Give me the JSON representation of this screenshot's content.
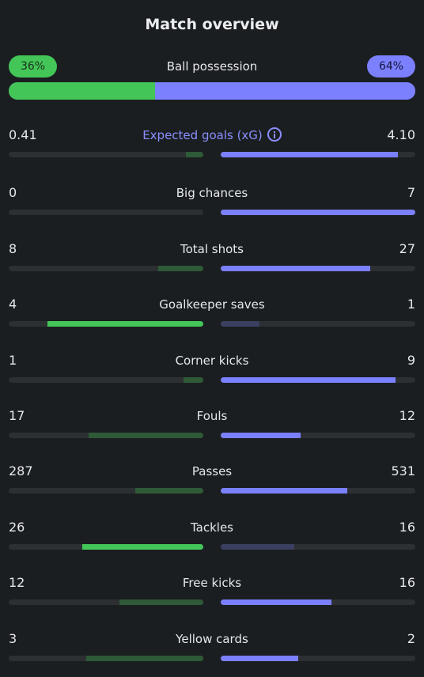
{
  "title": "Match overview",
  "possession": {
    "label": "Ball possession",
    "home": "36%",
    "away": "64%",
    "home_share": 0.36
  },
  "colors": {
    "home_strong": "#43c657",
    "home_weak": "#2f5a38",
    "away_strong": "#7b80ff",
    "away_weak": "#3b4060",
    "track": "#2c3033"
  },
  "stats": [
    {
      "key": "xg",
      "label": "Expected goals (xG)",
      "home": "0.41",
      "away": "4.10",
      "home_fill": 0.09,
      "away_fill": 0.91,
      "winner": "away",
      "accent": true,
      "info": true
    },
    {
      "key": "big-chances",
      "label": "Big chances",
      "home": "0",
      "away": "7",
      "home_fill": 0.0,
      "away_fill": 1.0,
      "winner": "away"
    },
    {
      "key": "total-shots",
      "label": "Total shots",
      "home": "8",
      "away": "27",
      "home_fill": 0.23,
      "away_fill": 0.77,
      "winner": "away"
    },
    {
      "key": "goalkeeper-saves",
      "label": "Goalkeeper saves",
      "home": "4",
      "away": "1",
      "home_fill": 0.8,
      "away_fill": 0.2,
      "winner": "home"
    },
    {
      "key": "corner-kicks",
      "label": "Corner kicks",
      "home": "1",
      "away": "9",
      "home_fill": 0.1,
      "away_fill": 0.9,
      "winner": "away"
    },
    {
      "key": "fouls",
      "label": "Fouls",
      "home": "17",
      "away": "12",
      "home_fill": 0.59,
      "away_fill": 0.41,
      "winner": "away"
    },
    {
      "key": "passes",
      "label": "Passes",
      "home": "287",
      "away": "531",
      "home_fill": 0.35,
      "away_fill": 0.65,
      "winner": "away"
    },
    {
      "key": "tackles",
      "label": "Tackles",
      "home": "26",
      "away": "16",
      "home_fill": 0.62,
      "away_fill": 0.38,
      "winner": "home"
    },
    {
      "key": "free-kicks",
      "label": "Free kicks",
      "home": "12",
      "away": "16",
      "home_fill": 0.43,
      "away_fill": 0.57,
      "winner": "away"
    },
    {
      "key": "yellow-cards",
      "label": "Yellow cards",
      "home": "3",
      "away": "2",
      "home_fill": 0.6,
      "away_fill": 0.4,
      "winner": "away"
    }
  ]
}
